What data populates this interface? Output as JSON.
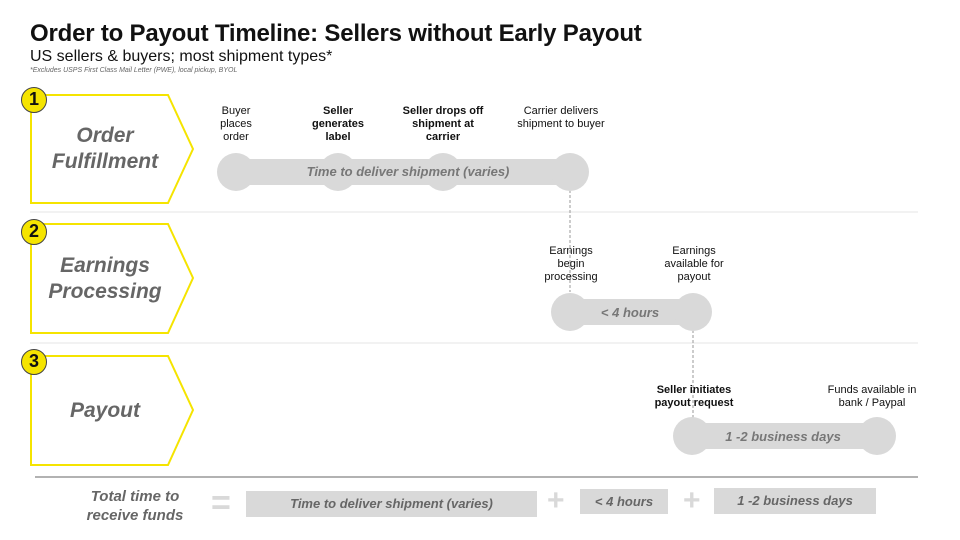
{
  "title": "Order to Payout Timeline: Sellers without Early Payout",
  "subtitle": "US sellers & buyers; most shipment types*",
  "footnote": "*Excludes USPS First Class Mail Letter (PWE), local pickup, BYOL",
  "accent_color": "#f5e400",
  "stages": [
    {
      "number": "1",
      "name": "Order Fulfillment",
      "bar": "Time to deliver shipment (varies)",
      "steps": [
        "Buyer places order",
        "Seller generates label",
        "Seller drops off shipment at carrier",
        "Carrier delivers shipment to buyer"
      ]
    },
    {
      "number": "2",
      "name": "Earnings Processing",
      "bar": "< 4 hours",
      "steps": [
        "Earnings begin processing",
        "Earnings available for payout"
      ]
    },
    {
      "number": "3",
      "name": "Payout",
      "bar": "1 -2 business days",
      "steps": [
        "Seller initiates payout request",
        "Funds available in bank / Paypal"
      ]
    }
  ],
  "total": {
    "label": "Total time to receive funds",
    "equals": "=",
    "plus": "+",
    "terms": [
      "Time to deliver shipment (varies)",
      "< 4 hours",
      "1 -2 business days"
    ]
  }
}
